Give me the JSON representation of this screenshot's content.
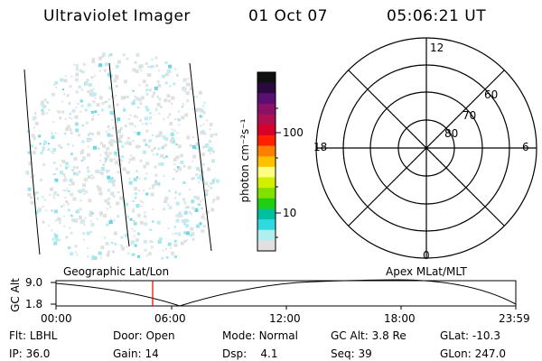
{
  "header": {
    "title": "Ultraviolet Imager",
    "date": "01 Oct 07",
    "time": "05:06:21 UT"
  },
  "colorbar": {
    "label": "photon cm⁻²s⁻¹",
    "ticks": [
      "100",
      "10"
    ],
    "colors": [
      "#101010",
      "#2a0a40",
      "#5a1070",
      "#8a1068",
      "#b01050",
      "#d80028",
      "#ff2000",
      "#ff8000",
      "#ffc000",
      "#ffff80",
      "#d0f000",
      "#80e000",
      "#20d010",
      "#00c0a0",
      "#30d8e0",
      "#b0eef0",
      "#e0e0e0"
    ]
  },
  "polar": {
    "lat_labels": [
      "60",
      "70",
      "80"
    ],
    "mlt_labels": {
      "top": "12",
      "bottom": "0",
      "left": "18",
      "right": "6"
    }
  },
  "timeline": {
    "left_title": "Geographic Lat/Lon",
    "right_title": "Apex MLat/MLT",
    "y_axis_label": "GC Alt",
    "y_ticks": [
      "9.0",
      "1.8"
    ],
    "x_ticks": [
      "00:00",
      "06:00",
      "12:00",
      "18:00",
      "23:59"
    ],
    "marker_color": "#e00000"
  },
  "status": {
    "row1": [
      {
        "label": "Flt:",
        "value": "LBHL"
      },
      {
        "label": "Door:",
        "value": "Open"
      },
      {
        "label": "Mode:",
        "value": "Normal"
      },
      {
        "label": "GC Alt:",
        "value": "3.8 Re"
      },
      {
        "label": "GLat:",
        "value": "-10.3"
      }
    ],
    "row2": [
      {
        "label": "IP:",
        "value": "36.0"
      },
      {
        "label": "Gain:",
        "value": "14"
      },
      {
        "label": "Dsp:",
        "value": "4.1"
      },
      {
        "label": "Seq:",
        "value": "39"
      },
      {
        "label": "GLon:",
        "value": "247.0"
      }
    ]
  }
}
